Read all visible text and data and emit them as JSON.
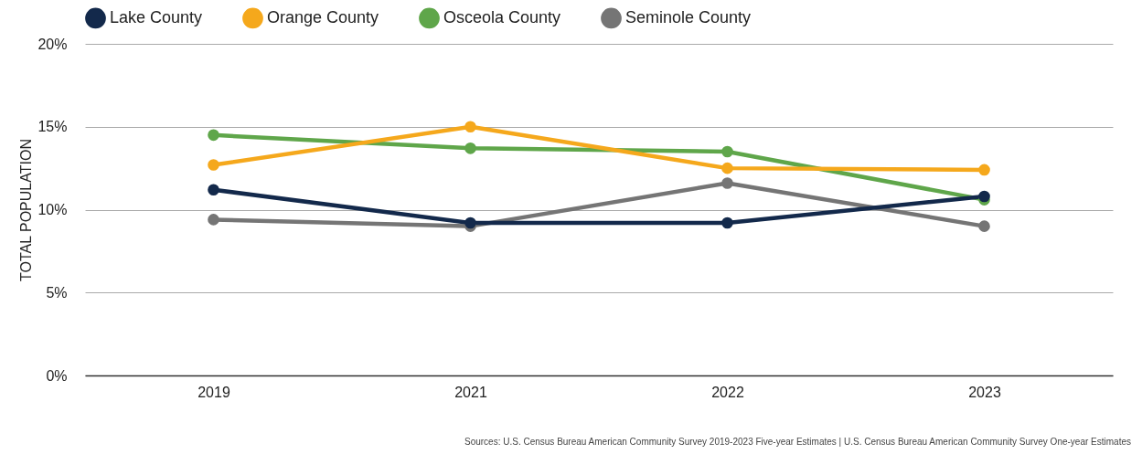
{
  "chart_data": {
    "type": "line",
    "ylabel": "TOTAL POPULATION",
    "categories": [
      "2019",
      "2021",
      "2022",
      "2023"
    ],
    "series": [
      {
        "name": "Lake County",
        "color": "#13294b",
        "values": [
          11.2,
          9.2,
          9.2,
          10.8
        ]
      },
      {
        "name": "Orange County",
        "color": "#f5a81c",
        "values": [
          12.7,
          15.0,
          12.5,
          12.4
        ]
      },
      {
        "name": "Osceola County",
        "color": "#5fa64a",
        "values": [
          14.5,
          13.7,
          13.5,
          10.6
        ]
      },
      {
        "name": "Seminole County",
        "color": "#757575",
        "values": [
          9.4,
          9.0,
          11.6,
          9.0
        ]
      }
    ],
    "ylim": [
      0,
      20
    ],
    "yticks": [
      {
        "value": 0,
        "label": "0%"
      },
      {
        "value": 5,
        "label": "5%"
      },
      {
        "value": 10,
        "label": "10%"
      },
      {
        "value": 15,
        "label": "15%"
      },
      {
        "value": 20,
        "label": "20%"
      }
    ],
    "grid": "y",
    "legend": "top",
    "marker": "circle",
    "line_style": "solid",
    "annotations": [
      "Sources: U.S. Census Bureau American Community Survey 2019-2023 Five-year Estimates | U.S. Census Bureau American Community Survey One-year Estimates"
    ]
  }
}
